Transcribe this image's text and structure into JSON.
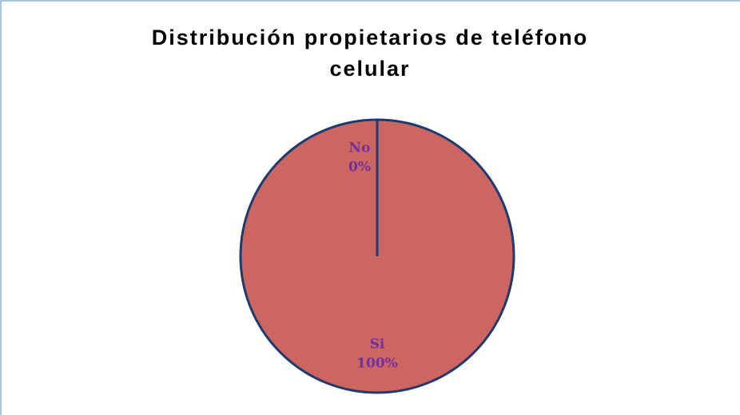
{
  "chart_data": {
    "type": "pie",
    "title": "Distribución propietarios de teléfono celular",
    "categories": [
      "No",
      "Si"
    ],
    "values": [
      0,
      100
    ],
    "value_labels": [
      "0%",
      "100%"
    ],
    "color": "#cd6660",
    "edge_color": "#1f3a6e",
    "label_color": "#7030a0"
  }
}
